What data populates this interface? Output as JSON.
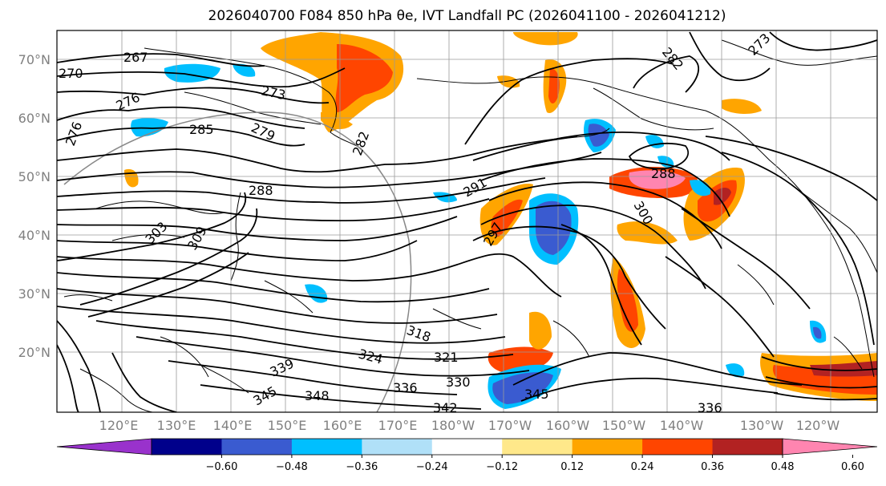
{
  "title": "2026040700 F084 850 hPa θe, IVT Landfall PC (2026041100 - 2026041212)",
  "lat_labels": [
    "70°N",
    "60°N",
    "50°N",
    "40°N",
    "30°N",
    "20°N"
  ],
  "lon_labels": [
    "120°E",
    "130°E",
    "140°E",
    "150°E",
    "160°E",
    "170°E",
    "180°W",
    "170°W",
    "160°W",
    "150°W",
    "140°W",
    "130°W",
    "120°W"
  ],
  "colorbar": {
    "colors": [
      "#9932cc",
      "#00008b",
      "#3a5bd0",
      "#00bfff",
      "#b0e0f8",
      "#ffffff",
      "#ffe88a",
      "#ffa500",
      "#ff4500",
      "#b22222",
      "#ff85b0"
    ],
    "tick_labels": [
      "−0.60",
      "−0.48",
      "−0.36",
      "−0.24",
      "−0.12",
      "0.12",
      "0.24",
      "0.36",
      "0.48",
      "0.60"
    ]
  },
  "contour_labels": [
    "267",
    "270",
    "273",
    "276",
    "276",
    "279",
    "285",
    "288",
    "288",
    "291",
    "297",
    "300",
    "303",
    "309",
    "318",
    "321",
    "324",
    "330",
    "336",
    "339",
    "342",
    "345",
    "345",
    "348",
    "282",
    "282",
    "273",
    "336"
  ]
}
